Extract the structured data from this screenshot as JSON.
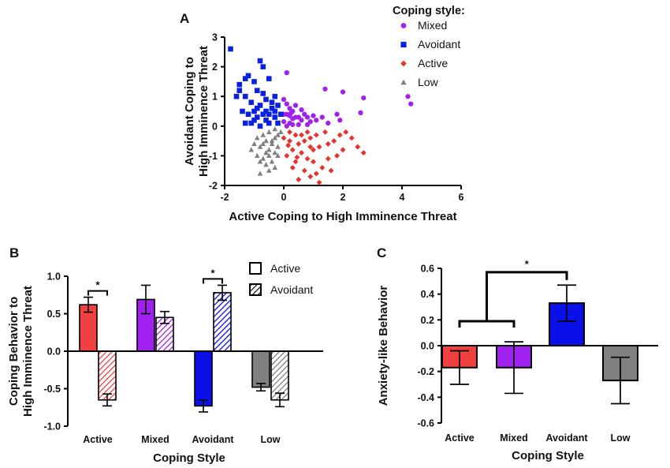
{
  "chart_data": [
    {
      "id": "A",
      "panel_label": "A",
      "type": "scatter",
      "xlabel": "Active Coping to High Imminence Threat",
      "ylabel_lines": [
        "Avoidant Coping to",
        "High Imminence Threat"
      ],
      "xlim": [
        -2,
        6
      ],
      "ylim": [
        -2,
        3
      ],
      "xticks": [
        -2,
        0,
        2,
        4,
        6
      ],
      "yticks": [
        -2,
        -1,
        0,
        1,
        2,
        3
      ],
      "legend_title": "Coping style:",
      "series": [
        {
          "name": "Mixed",
          "marker": "circle",
          "color": "#a020f0",
          "points": [
            [
              0.1,
              1.8
            ],
            [
              0.0,
              0.9
            ],
            [
              0.1,
              0.75
            ],
            [
              0.2,
              0.6
            ],
            [
              0.3,
              0.5
            ],
            [
              0.1,
              0.4
            ],
            [
              0.2,
              0.35
            ],
            [
              0.4,
              0.3
            ],
            [
              0.5,
              0.3
            ],
            [
              0.3,
              0.25
            ],
            [
              0.6,
              0.55
            ],
            [
              0.7,
              0.4
            ],
            [
              0.8,
              0.3
            ],
            [
              1.0,
              0.35
            ],
            [
              1.3,
              0.3
            ],
            [
              1.4,
              1.25
            ],
            [
              1.8,
              0.4
            ],
            [
              2.0,
              1.15
            ],
            [
              2.6,
              0.45
            ],
            [
              2.7,
              0.95
            ],
            [
              4.2,
              1.0
            ],
            [
              4.3,
              0.75
            ],
            [
              0.2,
              0.1
            ],
            [
              0.5,
              0.05
            ],
            [
              0.8,
              0.05
            ],
            [
              0.1,
              0.0
            ],
            [
              0.3,
              0.05
            ],
            [
              1.5,
              0.1
            ],
            [
              1.9,
              0.2
            ],
            [
              0.6,
              0.2
            ],
            [
              0.0,
              0.15
            ],
            [
              0.4,
              0.7
            ],
            [
              1.1,
              0.2
            ],
            [
              0.25,
              0.45
            ],
            [
              0.9,
              0.15
            ],
            [
              0.0,
              0.4
            ]
          ]
        },
        {
          "name": "Avoidant",
          "marker": "square",
          "color": "#0a22e0",
          "points": [
            [
              -1.8,
              2.6
            ],
            [
              -1.3,
              1.6
            ],
            [
              -1.5,
              1.4
            ],
            [
              -1.2,
              1.7
            ],
            [
              -0.8,
              2.2
            ],
            [
              -0.7,
              2.0
            ],
            [
              -0.5,
              1.6
            ],
            [
              -1.5,
              1.2
            ],
            [
              -1.3,
              1.0
            ],
            [
              -1.6,
              1.0
            ],
            [
              -1.0,
              1.5
            ],
            [
              -0.9,
              1.2
            ],
            [
              -0.7,
              1.1
            ],
            [
              -1.1,
              0.8
            ],
            [
              -0.8,
              0.7
            ],
            [
              -0.6,
              0.9
            ],
            [
              -0.4,
              0.8
            ],
            [
              -0.3,
              0.5
            ],
            [
              -1.4,
              0.5
            ],
            [
              -1.2,
              0.4
            ],
            [
              -0.9,
              0.3
            ],
            [
              -0.6,
              0.5
            ],
            [
              -0.3,
              0.3
            ],
            [
              -0.2,
              0.1
            ],
            [
              -1.3,
              0.1
            ],
            [
              -1.0,
              0.2
            ],
            [
              -0.8,
              0.0
            ],
            [
              -0.5,
              0.1
            ],
            [
              -0.7,
              0.4
            ],
            [
              -0.4,
              0.6
            ],
            [
              -0.2,
              0.7
            ],
            [
              -0.9,
              0.6
            ],
            [
              -1.1,
              0.1
            ],
            [
              -0.6,
              0.2
            ],
            [
              -0.3,
              1.0
            ],
            [
              -1.0,
              0.5
            ],
            [
              -0.5,
              0.4
            ],
            [
              -0.1,
              0.4
            ]
          ]
        },
        {
          "name": "Active",
          "marker": "diamond",
          "color": "#e8332b",
          "points": [
            [
              0.0,
              -0.4
            ],
            [
              0.2,
              -0.5
            ],
            [
              0.4,
              -0.3
            ],
            [
              0.5,
              -0.6
            ],
            [
              0.7,
              -0.5
            ],
            [
              0.9,
              -0.4
            ],
            [
              1.1,
              -0.3
            ],
            [
              0.3,
              -0.8
            ],
            [
              0.6,
              -0.9
            ],
            [
              0.8,
              -1.1
            ],
            [
              1.0,
              -0.8
            ],
            [
              1.2,
              -0.7
            ],
            [
              1.5,
              -0.6
            ],
            [
              1.7,
              -0.5
            ],
            [
              1.9,
              -0.3
            ],
            [
              2.1,
              -0.2
            ],
            [
              2.3,
              -0.4
            ],
            [
              2.5,
              -0.7
            ],
            [
              0.4,
              -1.2
            ],
            [
              0.7,
              -1.5
            ],
            [
              0.9,
              -1.7
            ],
            [
              1.2,
              -1.9
            ],
            [
              1.5,
              -1.1
            ],
            [
              1.8,
              -1.0
            ],
            [
              0.1,
              -1.0
            ],
            [
              0.3,
              -1.4
            ],
            [
              0.5,
              -1.8
            ],
            [
              1.0,
              -1.2
            ],
            [
              1.3,
              -1.4
            ],
            [
              2.7,
              -0.9
            ],
            [
              1.4,
              -0.2
            ],
            [
              0.8,
              -0.2
            ],
            [
              0.2,
              -0.2
            ],
            [
              1.6,
              -1.5
            ],
            [
              0.6,
              -0.3
            ],
            [
              1.1,
              -1.6
            ],
            [
              2.0,
              -0.8
            ],
            [
              0.9,
              -0.7
            ],
            [
              0.15,
              -0.65
            ],
            [
              0.45,
              -1.05
            ]
          ]
        },
        {
          "name": "Low",
          "marker": "triangle",
          "color": "#808080",
          "points": [
            [
              -0.5,
              -0.2
            ],
            [
              -0.3,
              -0.1
            ],
            [
              -0.2,
              -0.3
            ],
            [
              -0.6,
              -0.5
            ],
            [
              -0.4,
              -0.6
            ],
            [
              -0.8,
              -0.7
            ],
            [
              -0.5,
              -0.8
            ],
            [
              -0.3,
              -0.9
            ],
            [
              -0.9,
              -1.0
            ],
            [
              -0.7,
              -1.1
            ],
            [
              -0.4,
              -1.2
            ],
            [
              -0.6,
              -1.3
            ],
            [
              -0.8,
              -1.6
            ],
            [
              -0.5,
              -1.5
            ],
            [
              -0.2,
              -1.0
            ],
            [
              -1.0,
              -0.6
            ],
            [
              -0.3,
              -0.4
            ],
            [
              -0.1,
              -0.2
            ],
            [
              -0.7,
              -0.3
            ],
            [
              -0.9,
              -0.4
            ],
            [
              -0.4,
              -0.5
            ],
            [
              -0.6,
              -0.9
            ],
            [
              -0.2,
              -0.7
            ],
            [
              -1.1,
              -0.8
            ],
            [
              -0.5,
              -1.0
            ],
            [
              -0.3,
              -1.4
            ],
            [
              -0.7,
              -0.6
            ],
            [
              -0.8,
              -1.2
            ]
          ]
        }
      ]
    },
    {
      "id": "B",
      "panel_label": "B",
      "type": "bar",
      "xlabel": "Coping Style",
      "ylabel_lines": [
        "Coping Behavior to",
        "High Imminence Threat"
      ],
      "ylim": [
        -1.0,
        1.0
      ],
      "yticks": [
        -1.0,
        -0.5,
        0.0,
        0.5,
        1.0
      ],
      "ytick_labels": [
        "-1.0",
        "-0.5",
        "0.0",
        "0.5",
        "1.0"
      ],
      "categories": [
        "Active",
        "Mixed",
        "Avoidant",
        "Low"
      ],
      "group_colors": [
        "#f04040",
        "#a020f0",
        "#0a10e8",
        "#808080"
      ],
      "series": [
        {
          "name": "Active",
          "pattern": "solid",
          "values": [
            0.62,
            0.69,
            -0.73,
            -0.48
          ],
          "errors": [
            0.1,
            0.19,
            0.08,
            0.05
          ]
        },
        {
          "name": "Avoidant",
          "pattern": "hatched",
          "values": [
            -0.65,
            0.45,
            0.78,
            -0.65
          ],
          "errors": [
            0.08,
            0.08,
            0.1,
            0.09
          ]
        }
      ],
      "significance": [
        {
          "group": 0,
          "label": "*"
        },
        {
          "group": 2,
          "label": "*"
        }
      ]
    },
    {
      "id": "C",
      "panel_label": "C",
      "type": "bar",
      "xlabel": "Coping Style",
      "ylabel": "Anxiety-like Behavior",
      "ylim": [
        -0.6,
        0.6
      ],
      "yticks": [
        -0.6,
        -0.4,
        -0.2,
        0.0,
        0.2,
        0.4,
        0.6
      ],
      "ytick_labels": [
        "-0.6",
        "-0.4",
        "-0.2",
        "0.0",
        "0.2",
        "0.4",
        "0.6"
      ],
      "categories": [
        "Active",
        "Mixed",
        "Avoidant",
        "Low"
      ],
      "colors": [
        "#f04040",
        "#a020f0",
        "#0a10e8",
        "#808080"
      ],
      "values": [
        -0.17,
        -0.17,
        0.33,
        -0.27
      ],
      "errors": [
        0.13,
        0.2,
        0.14,
        0.18
      ],
      "significance": [
        {
          "from_groups": [
            0,
            1
          ],
          "to_group": 2,
          "label": "*"
        }
      ]
    }
  ]
}
